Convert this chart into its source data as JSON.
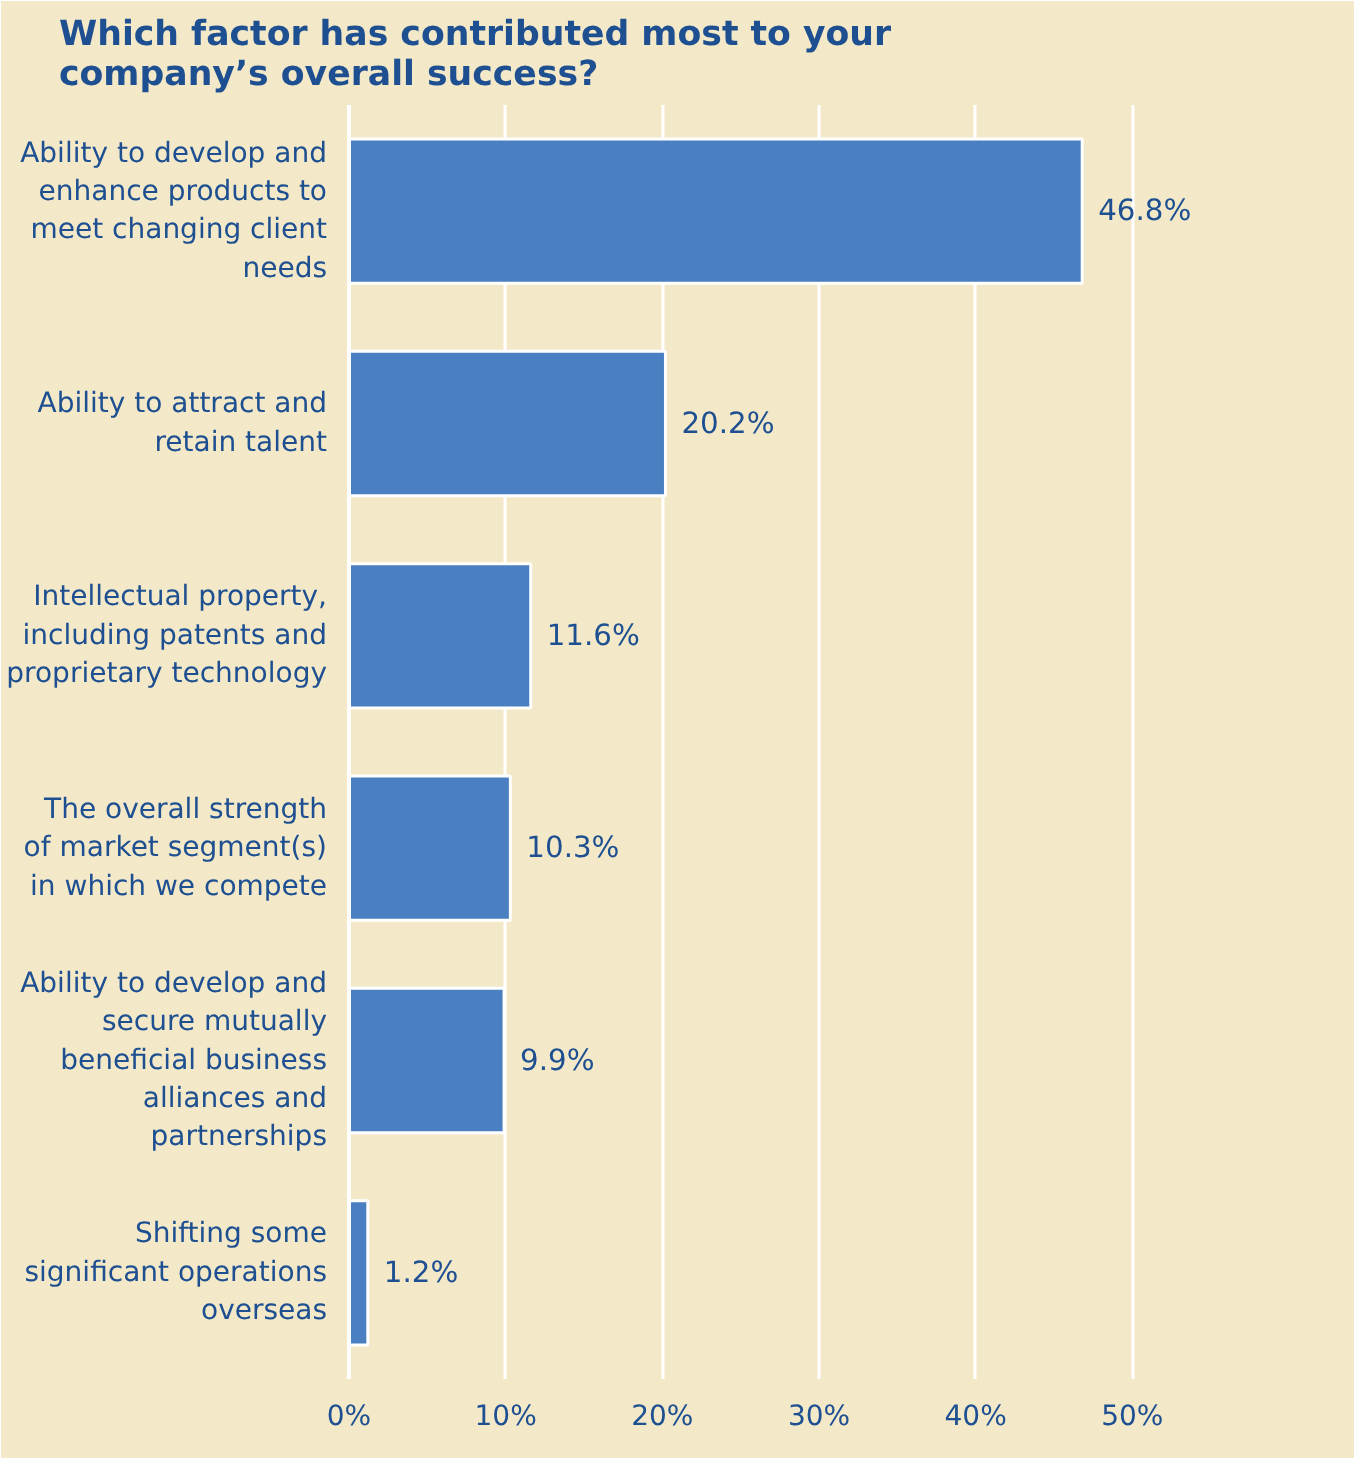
{
  "chart_data": {
    "type": "bar",
    "orientation": "horizontal",
    "title": "Which factor has contributed most to your company’s overall success?",
    "categories": [
      "Ability to develop and enhance products to meet changing client needs",
      "Ability to attract and retain talent",
      "Intellectual property, including patents and proprietary technology",
      "The overall strength of market segment(s) in which we compete",
      "Ability to develop and secure mutually beneficial business alliances and partnerships",
      "Shifting some significant operations overseas"
    ],
    "values": [
      46.8,
      20.2,
      11.6,
      10.3,
      9.9,
      1.2
    ],
    "value_labels": [
      "46.8%",
      "20.2%",
      "11.6%",
      "10.3%",
      "9.9%",
      "1.2%"
    ],
    "color": "#4a80c2",
    "xlim": [
      0,
      54
    ],
    "xticks": [
      {
        "value": 0,
        "label": "0%"
      },
      {
        "value": 10,
        "label": "10%"
      },
      {
        "value": 20,
        "label": "20%"
      },
      {
        "value": 30,
        "label": "30%"
      },
      {
        "value": 40,
        "label": "40%"
      },
      {
        "value": 50,
        "label": "50%"
      }
    ],
    "grid": "x"
  }
}
